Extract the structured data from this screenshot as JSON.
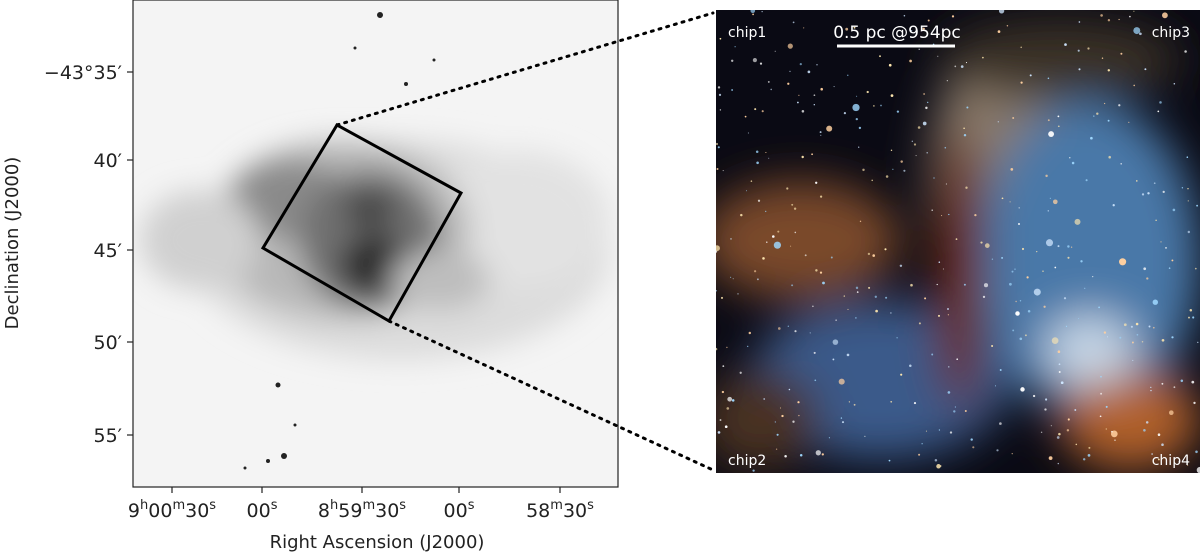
{
  "left_panel": {
    "x_label": "Right Ascension (J2000)",
    "y_label": "Declination (J2000)",
    "x_ticks": [
      "9h00m30s",
      "00s",
      "8h59m30s",
      "00s",
      "58m30s"
    ],
    "y_ticks": [
      "−43°35′",
      "40′",
      "45′",
      "50′",
      "55′"
    ]
  },
  "right_panel": {
    "chips": [
      "chip1",
      "chip3",
      "chip2",
      "chip4"
    ],
    "scale_bar": "0.5 pc @954pc"
  }
}
